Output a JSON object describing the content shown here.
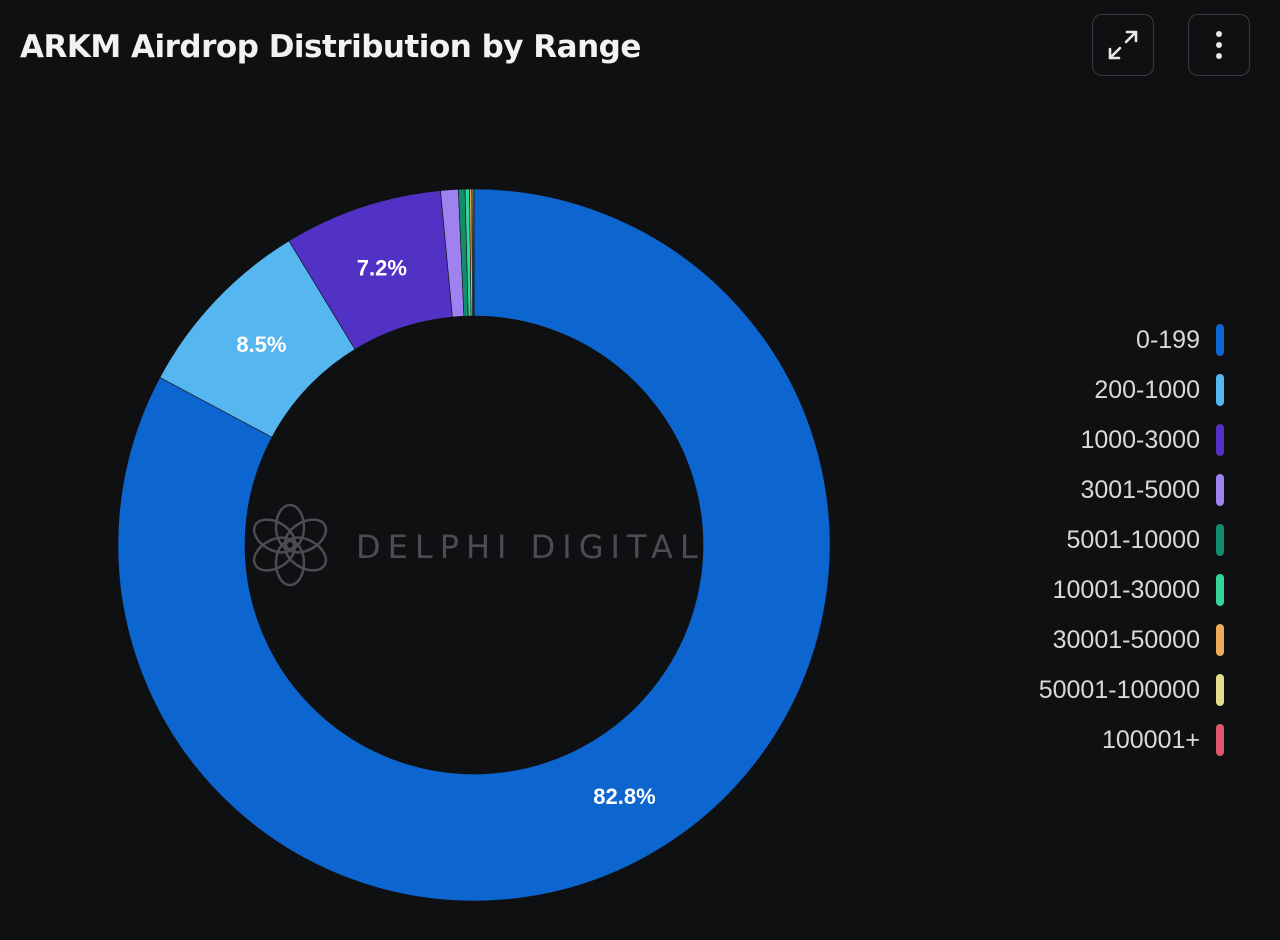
{
  "header": {
    "title": "ARKM Airdrop Distribution by Range",
    "expand_icon": "expand-arrows-icon",
    "menu_icon": "more-vertical-icon"
  },
  "watermark": {
    "text": "DELPHI DIGITAL",
    "logo_icon": "delphi-flower-logo"
  },
  "colors": {
    "background": "#0f1012",
    "hole": "#0f1012"
  },
  "chart_data": {
    "type": "pie",
    "subtype": "donut",
    "title": "ARKM Airdrop Distribution by Range",
    "legend_position": "right",
    "slices": [
      {
        "label": "0-199",
        "value": 82.8,
        "display": "82.8%",
        "color": "#0d66cf"
      },
      {
        "label": "200-1000",
        "value": 8.5,
        "display": "8.5%",
        "color": "#56b6f0"
      },
      {
        "label": "1000-3000",
        "value": 7.2,
        "display": "7.2%",
        "color": "#5232c4"
      },
      {
        "label": "3001-5000",
        "value": 0.8,
        "display": "",
        "color": "#9d82f0"
      },
      {
        "label": "5001-10000",
        "value": 0.3,
        "display": "",
        "color": "#128d6b"
      },
      {
        "label": "10001-30000",
        "value": 0.2,
        "display": "",
        "color": "#34d39a"
      },
      {
        "label": "30001-50000",
        "value": 0.1,
        "display": "",
        "color": "#f0a95a"
      },
      {
        "label": "50001-100000",
        "value": 0.05,
        "display": "",
        "color": "#e3dc8a"
      },
      {
        "label": "100001+",
        "value": 0.05,
        "display": "",
        "color": "#e0566a"
      }
    ]
  }
}
